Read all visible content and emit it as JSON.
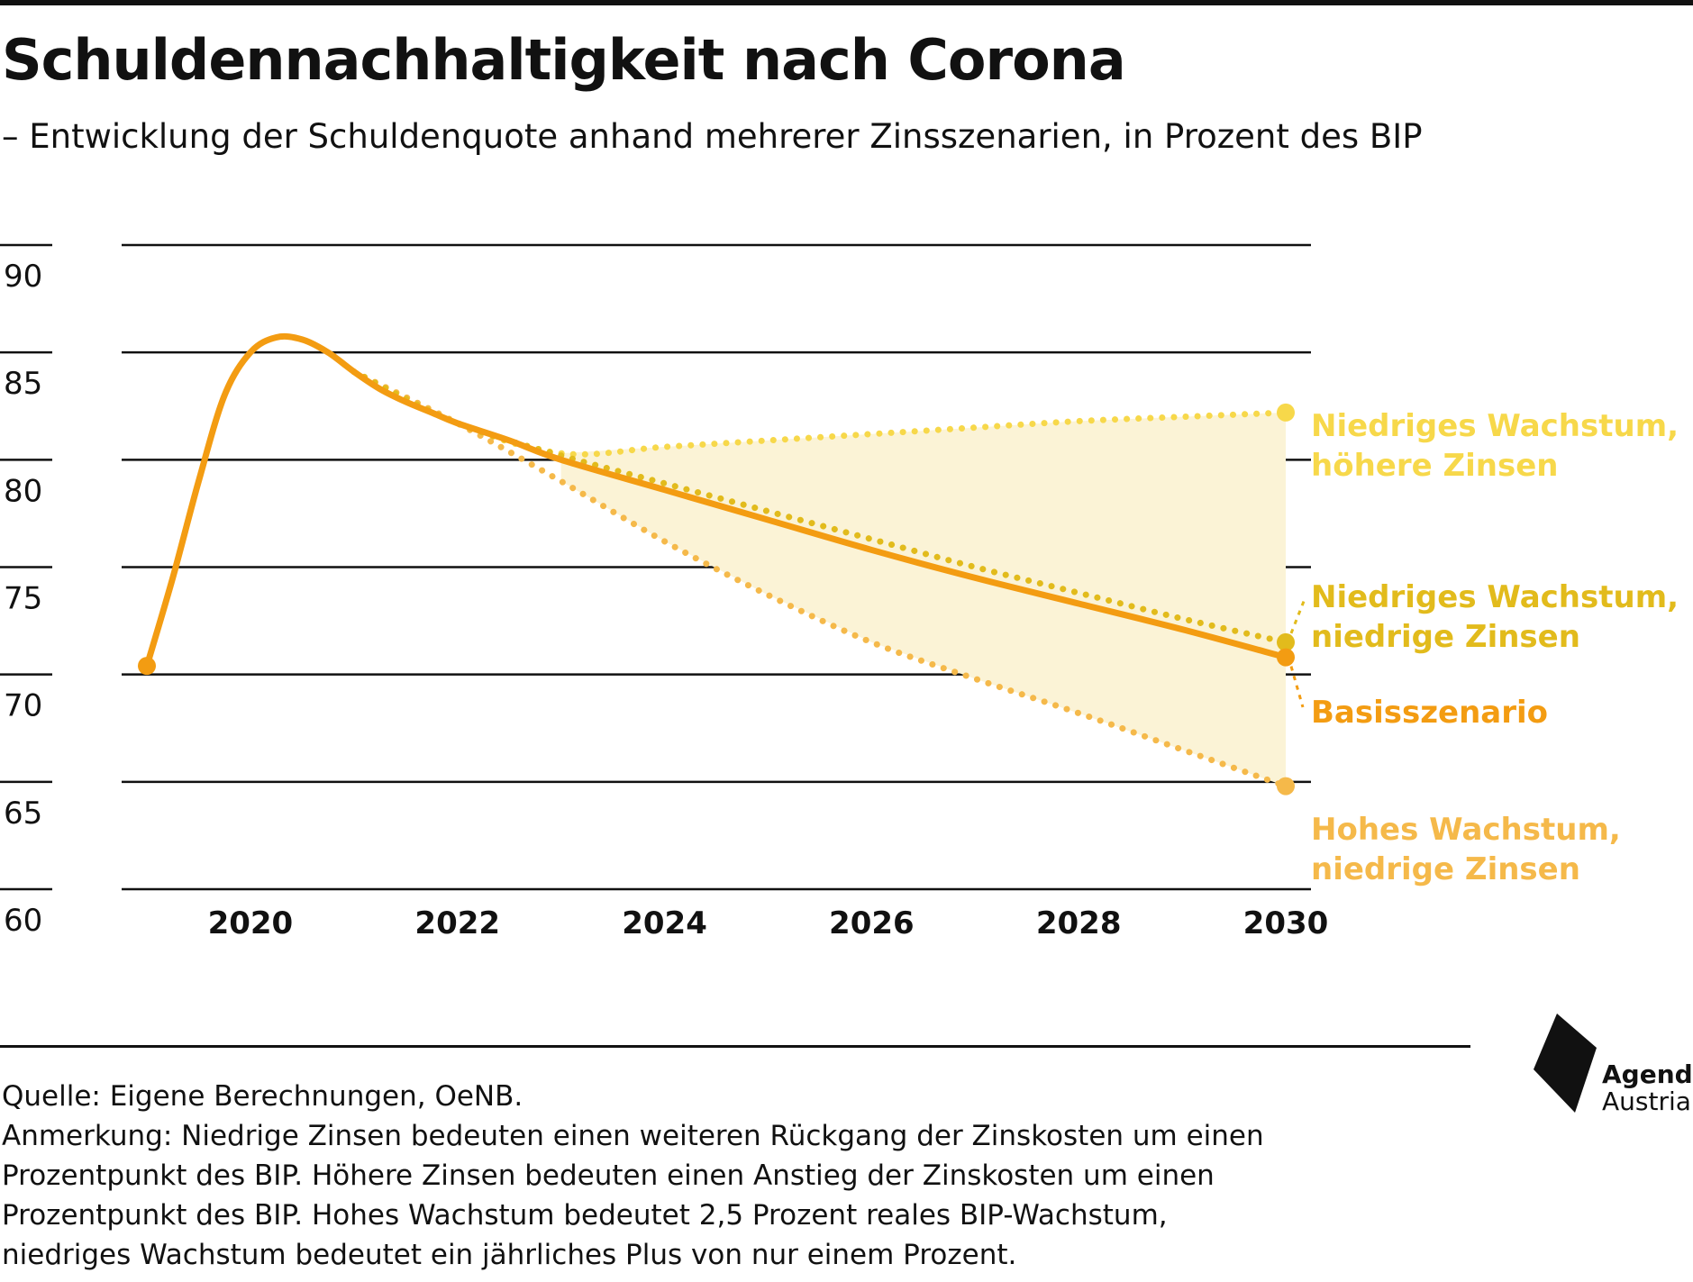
{
  "title": "Schuldennachhaltigkeit nach Corona",
  "subtitle": "– Entwicklung der Schuldenquote anhand mehrerer Zinsszenarien, in Prozent des BIP",
  "colors": {
    "basis": "#f39c12",
    "niedrig_hoch": "#f7d84a",
    "niedrig_niedrig": "#e2bb1c",
    "hoch_niedrig": "#f5b94a",
    "band": "#fbf3d6"
  },
  "chart_data": {
    "type": "line",
    "title": "Schuldennachhaltigkeit nach Corona",
    "xlabel": "",
    "ylabel": "",
    "xlim": [
      2019,
      2030
    ],
    "ylim": [
      60,
      90
    ],
    "x_ticks": [
      2020,
      2022,
      2024,
      2026,
      2028,
      2030
    ],
    "y_ticks": [
      60,
      65,
      70,
      75,
      80,
      85,
      90
    ],
    "grid": true,
    "series": [
      {
        "name": "Basisszenario",
        "style": "solid",
        "color": "#f39c12",
        "x": [
          2019.0,
          2019.25,
          2019.5,
          2019.75,
          2020.0,
          2020.25,
          2020.5,
          2020.75,
          2021.0,
          2021.25,
          2021.5,
          2021.75,
          2022.0,
          2022.5,
          2023.0,
          2024.0,
          2025.0,
          2026.0,
          2027.0,
          2028.0,
          2029.0,
          2030.0
        ],
        "y": [
          70.4,
          74.5,
          79.0,
          83.0,
          85.0,
          85.7,
          85.6,
          85.0,
          84.1,
          83.3,
          82.7,
          82.2,
          81.7,
          80.9,
          80.0,
          78.6,
          77.2,
          75.8,
          74.5,
          73.3,
          72.1,
          70.8
        ]
      },
      {
        "name": "Niedriges Wachstum, höhere Zinsen",
        "style": "dotted",
        "color": "#f7d84a",
        "x": [
          2021.0,
          2022.0,
          2023.0,
          2024.0,
          2025.0,
          2026.0,
          2027.0,
          2028.0,
          2029.0,
          2030.0
        ],
        "y": [
          84.1,
          81.7,
          80.3,
          80.6,
          80.9,
          81.2,
          81.5,
          81.8,
          82.0,
          82.2
        ]
      },
      {
        "name": "Niedriges Wachstum, niedrige Zinsen",
        "style": "dotted",
        "color": "#e2bb1c",
        "x": [
          2021.0,
          2022.0,
          2023.0,
          2024.0,
          2025.0,
          2026.0,
          2027.0,
          2028.0,
          2029.0,
          2030.0
        ],
        "y": [
          84.1,
          81.7,
          80.2,
          78.9,
          77.6,
          76.3,
          75.0,
          73.8,
          72.6,
          71.5
        ]
      },
      {
        "name": "Hohes Wachstum, niedrige Zinsen",
        "style": "dotted",
        "color": "#f5b94a",
        "x": [
          2021.0,
          2022.0,
          2023.0,
          2024.0,
          2025.0,
          2026.0,
          2027.0,
          2028.0,
          2029.0,
          2030.0
        ],
        "y": [
          84.1,
          81.7,
          79.0,
          76.2,
          73.7,
          71.5,
          69.8,
          68.2,
          66.5,
          64.8
        ]
      }
    ]
  },
  "legend_labels": {
    "niedrig_hoch_1": "Niedriges Wachstum,",
    "niedrig_hoch_2": "höhere Zinsen",
    "niedrig_niedrig_1": "Niedriges Wachstum,",
    "niedrig_niedrig_2": "niedrige Zinsen",
    "basis": "Basisszenario",
    "hoch_niedrig_1": "Hohes Wachstum,",
    "hoch_niedrig_2": "niedrige Zinsen"
  },
  "notes": {
    "source": "Quelle: Eigene Berechnungen, OeNB.",
    "line1": "Anmerkung: Niedrige Zinsen bedeuten einen weiteren Rückgang der Zinskosten um einen",
    "line2": "Prozentpunkt des BIP. Höhere Zinsen bedeuten einen Anstieg der Zinskosten um einen",
    "line3": "Prozentpunkt des BIP. Hohes Wachstum bedeutet 2,5 Prozent reales BIP-Wachstum,",
    "line4": "niedriges Wachstum bedeutet ein jährliches Plus von nur einem Prozent."
  },
  "logo": {
    "line1": "Agenda",
    "line2": "Austria"
  }
}
